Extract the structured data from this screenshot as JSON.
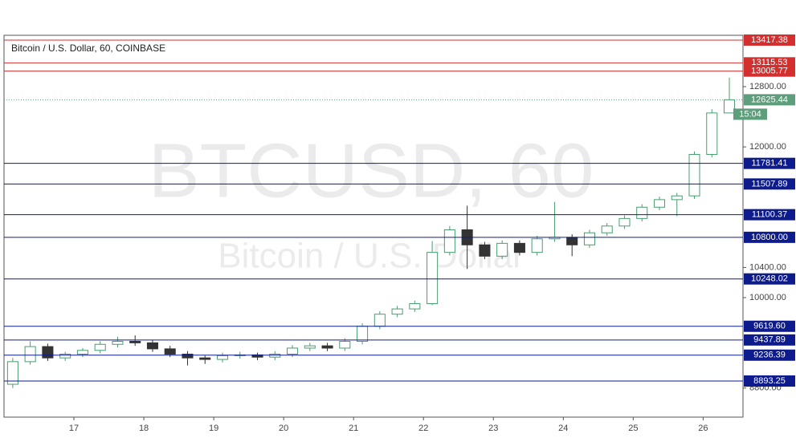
{
  "chart_data": {
    "type": "candlestick",
    "title": "Bitcoin / U.S. Dollar, 60, COINBASE",
    "watermark": [
      "BTCUSD, 60",
      "Bitcoin / U.S. Dollar"
    ],
    "x": [
      16.125,
      16.375,
      16.625,
      16.875,
      17.125,
      17.375,
      17.625,
      17.875,
      18.125,
      18.375,
      18.625,
      18.875,
      19.125,
      19.375,
      19.625,
      19.875,
      20.125,
      20.375,
      20.625,
      20.875,
      21.125,
      21.375,
      21.625,
      21.875,
      22.125,
      22.375,
      22.625,
      22.875,
      23.125,
      23.375,
      23.625,
      23.875,
      24.125,
      24.375,
      24.625,
      24.875,
      25.125,
      25.375,
      25.625,
      25.875,
      26.125,
      26.375
    ],
    "open": [
      8850,
      9150,
      9350,
      9200,
      9250,
      9300,
      9380,
      9420,
      9400,
      9320,
      9250,
      9200,
      9180,
      9230,
      9240,
      9210,
      9250,
      9330,
      9360,
      9330,
      9420,
      9620,
      9780,
      9850,
      9920,
      10600,
      10900,
      10700,
      10550,
      10720,
      10600,
      10780,
      10800,
      10700,
      10860,
      10950,
      11050,
      11200,
      11300,
      11350,
      11900,
      12450
    ],
    "high": [
      9200,
      9420,
      9390,
      9280,
      9330,
      9420,
      9480,
      9500,
      9440,
      9360,
      9290,
      9230,
      9270,
      9280,
      9270,
      9290,
      9370,
      9400,
      9400,
      9460,
      9660,
      9820,
      9890,
      9960,
      10750,
      10950,
      11220,
      10740,
      10760,
      10760,
      10820,
      11270,
      10840,
      10900,
      10990,
      11090,
      11240,
      11340,
      11390,
      11940,
      12500,
      12920
    ],
    "low": [
      8800,
      9110,
      9160,
      9160,
      9210,
      9260,
      9340,
      9360,
      9280,
      9210,
      9100,
      9120,
      9140,
      9190,
      9170,
      9170,
      9210,
      9290,
      9290,
      9290,
      9380,
      9580,
      9740,
      9810,
      9900,
      10560,
      10380,
      10510,
      10510,
      10560,
      10560,
      10740,
      10550,
      10660,
      10820,
      10910,
      11010,
      11160,
      11080,
      11310,
      11860,
      12450
    ],
    "close": [
      9150,
      9350,
      9200,
      9250,
      9300,
      9380,
      9420,
      9400,
      9320,
      9250,
      9200,
      9180,
      9230,
      9240,
      9210,
      9250,
      9330,
      9360,
      9330,
      9420,
      9620,
      9780,
      9850,
      9920,
      10600,
      10900,
      10700,
      10550,
      10720,
      10600,
      10780,
      10800,
      10700,
      10860,
      10950,
      11050,
      11200,
      11300,
      11350,
      11900,
      12450,
      12625
    ],
    "up_color": "#4a9d6f",
    "down_color": "#333333",
    "xlim": [
      16,
      26.57
    ],
    "xticks": [
      17,
      18,
      19,
      20,
      21,
      22,
      23,
      24,
      25,
      26
    ],
    "ylim": [
      8414,
      13481
    ],
    "yticks": [
      {
        "value": 8800,
        "label": "8800.00"
      },
      {
        "value": 10000,
        "label": "10000.00"
      },
      {
        "value": 10400,
        "label": "10400.00"
      },
      {
        "value": 12000,
        "label": "12000.00"
      },
      {
        "value": 12800,
        "label": "12800.00"
      }
    ],
    "levels": {
      "values": [
        13417.38,
        13115.53,
        13005.77,
        11781.41,
        11507.89,
        11100.37,
        10800,
        10248.02,
        9619.6,
        9437.89,
        9236.39,
        8893.25
      ],
      "value_labels": [
        "13417.38",
        "13115.53",
        "13005.77",
        "11781.41",
        "11507.89",
        "11100.37",
        "10800.00",
        "10248.02",
        "9619.60",
        "9437.89",
        "9236.39",
        "8893.25"
      ],
      "colors": [
        "#d32f2f",
        "#d32f2f",
        "#d32f2f",
        "#0d1b8c",
        "#0d1b8c",
        "#0d1b8c",
        "#0d1b8c",
        "#0d1b8c",
        "#0d1b8c",
        "#0d1b8c",
        "#0d1b8c",
        "#0d1b8c"
      ]
    },
    "last_price": {
      "value": 12625.44,
      "label": "12625.44",
      "countdown": "15:04",
      "color": "#5e9e7c"
    }
  }
}
